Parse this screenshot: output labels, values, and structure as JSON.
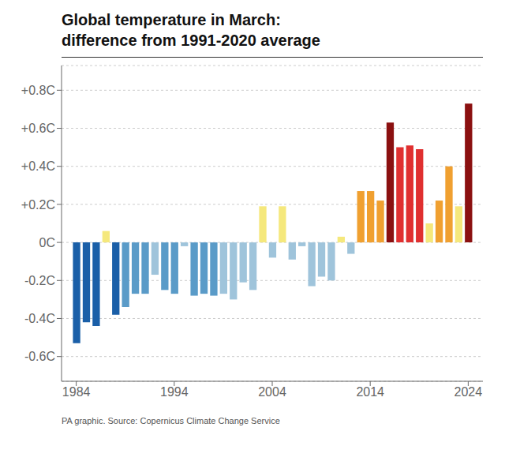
{
  "chart_data": {
    "type": "bar",
    "title": "Global temperature in March:",
    "subtitle": "difference from 1991-2020 average",
    "annotations": [
      "PA graphic. Source: Copernicus Climate Change Service"
    ],
    "x": [
      1984,
      1985,
      1986,
      1987,
      1988,
      1989,
      1990,
      1991,
      1992,
      1993,
      1994,
      1995,
      1996,
      1997,
      1998,
      1999,
      2000,
      2001,
      2002,
      2003,
      2004,
      2005,
      2006,
      2007,
      2008,
      2009,
      2010,
      2011,
      2012,
      2013,
      2014,
      2015,
      2016,
      2017,
      2018,
      2019,
      2020,
      2021,
      2022,
      2023,
      2024
    ],
    "values": [
      -0.53,
      -0.42,
      -0.44,
      0.06,
      -0.38,
      -0.34,
      -0.27,
      -0.27,
      -0.17,
      -0.25,
      -0.27,
      -0.02,
      -0.28,
      -0.27,
      -0.28,
      -0.27,
      -0.3,
      -0.21,
      -0.25,
      0.19,
      -0.08,
      0.19,
      -0.09,
      -0.02,
      -0.23,
      -0.18,
      -0.2,
      0.03,
      -0.06,
      0.27,
      0.27,
      0.22,
      0.63,
      0.5,
      0.51,
      0.49,
      0.1,
      0.22,
      0.4,
      0.19,
      0.73
    ],
    "colors": [
      "#1a5fa8",
      "#1a5fa8",
      "#1a5fa8",
      "#f5e87c",
      "#1a5fa8",
      "#5a9bc8",
      "#5a9bc8",
      "#5a9bc8",
      "#9fc4db",
      "#5a9bc8",
      "#5a9bc8",
      "#9fc4db",
      "#5a9bc8",
      "#5a9bc8",
      "#5a9bc8",
      "#9fc4db",
      "#9fc4db",
      "#9fc4db",
      "#9fc4db",
      "#f5e87c",
      "#9fc4db",
      "#f5e87c",
      "#9fc4db",
      "#9fc4db",
      "#9fc4db",
      "#9fc4db",
      "#9fc4db",
      "#f5e87c",
      "#9fc4db",
      "#f0a030",
      "#f0a030",
      "#f0a030",
      "#8b1010",
      "#e03030",
      "#e03030",
      "#e03030",
      "#f5e87c",
      "#f0a030",
      "#f0a030",
      "#f5e87c",
      "#8b1010"
    ],
    "xlim": [
      1982.5,
      2025.5
    ],
    "xticks": [
      1984,
      1994,
      2004,
      2014,
      2024
    ],
    "ylim": [
      -0.73,
      0.93
    ],
    "yticks": [
      {
        "value": -0.6,
        "label": "-0.6C"
      },
      {
        "value": -0.4,
        "label": "-0.4C"
      },
      {
        "value": -0.2,
        "label": "-0.2C"
      },
      {
        "value": 0.0,
        "label": "0C"
      },
      {
        "value": 0.2,
        "label": "+0.2C"
      },
      {
        "value": 0.4,
        "label": "+0.4C"
      },
      {
        "value": 0.6,
        "label": "+0.6C"
      },
      {
        "value": 0.8,
        "label": "+0.8C"
      }
    ],
    "grid": "y"
  }
}
